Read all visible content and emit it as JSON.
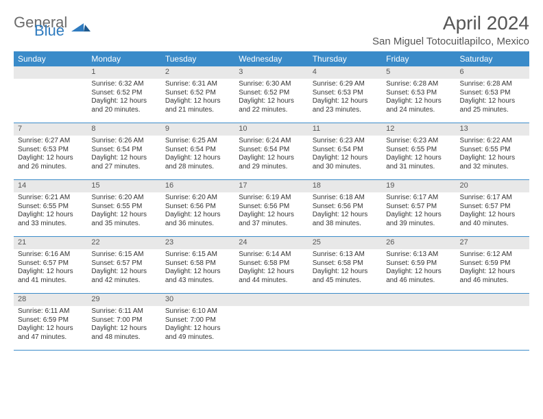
{
  "brand": {
    "part1": "General",
    "part2": "Blue"
  },
  "title": "April 2024",
  "location": "San Miguel Totocuitlapilco, Mexico",
  "colors": {
    "headerBar": "#3a8bc9",
    "dayNumBg": "#e8e8e8",
    "text": "#333333",
    "titleText": "#555555",
    "brandGrey": "#6b6b6b",
    "brandBlue": "#2f7bbf"
  },
  "dayNames": [
    "Sunday",
    "Monday",
    "Tuesday",
    "Wednesday",
    "Thursday",
    "Friday",
    "Saturday"
  ],
  "weeks": [
    [
      {
        "n": "",
        "sunrise": "",
        "sunset": "",
        "daylight": ""
      },
      {
        "n": "1",
        "sunrise": "Sunrise: 6:32 AM",
        "sunset": "Sunset: 6:52 PM",
        "daylight": "Daylight: 12 hours and 20 minutes."
      },
      {
        "n": "2",
        "sunrise": "Sunrise: 6:31 AM",
        "sunset": "Sunset: 6:52 PM",
        "daylight": "Daylight: 12 hours and 21 minutes."
      },
      {
        "n": "3",
        "sunrise": "Sunrise: 6:30 AM",
        "sunset": "Sunset: 6:52 PM",
        "daylight": "Daylight: 12 hours and 22 minutes."
      },
      {
        "n": "4",
        "sunrise": "Sunrise: 6:29 AM",
        "sunset": "Sunset: 6:53 PM",
        "daylight": "Daylight: 12 hours and 23 minutes."
      },
      {
        "n": "5",
        "sunrise": "Sunrise: 6:28 AM",
        "sunset": "Sunset: 6:53 PM",
        "daylight": "Daylight: 12 hours and 24 minutes."
      },
      {
        "n": "6",
        "sunrise": "Sunrise: 6:28 AM",
        "sunset": "Sunset: 6:53 PM",
        "daylight": "Daylight: 12 hours and 25 minutes."
      }
    ],
    [
      {
        "n": "7",
        "sunrise": "Sunrise: 6:27 AM",
        "sunset": "Sunset: 6:53 PM",
        "daylight": "Daylight: 12 hours and 26 minutes."
      },
      {
        "n": "8",
        "sunrise": "Sunrise: 6:26 AM",
        "sunset": "Sunset: 6:54 PM",
        "daylight": "Daylight: 12 hours and 27 minutes."
      },
      {
        "n": "9",
        "sunrise": "Sunrise: 6:25 AM",
        "sunset": "Sunset: 6:54 PM",
        "daylight": "Daylight: 12 hours and 28 minutes."
      },
      {
        "n": "10",
        "sunrise": "Sunrise: 6:24 AM",
        "sunset": "Sunset: 6:54 PM",
        "daylight": "Daylight: 12 hours and 29 minutes."
      },
      {
        "n": "11",
        "sunrise": "Sunrise: 6:23 AM",
        "sunset": "Sunset: 6:54 PM",
        "daylight": "Daylight: 12 hours and 30 minutes."
      },
      {
        "n": "12",
        "sunrise": "Sunrise: 6:23 AM",
        "sunset": "Sunset: 6:55 PM",
        "daylight": "Daylight: 12 hours and 31 minutes."
      },
      {
        "n": "13",
        "sunrise": "Sunrise: 6:22 AM",
        "sunset": "Sunset: 6:55 PM",
        "daylight": "Daylight: 12 hours and 32 minutes."
      }
    ],
    [
      {
        "n": "14",
        "sunrise": "Sunrise: 6:21 AM",
        "sunset": "Sunset: 6:55 PM",
        "daylight": "Daylight: 12 hours and 33 minutes."
      },
      {
        "n": "15",
        "sunrise": "Sunrise: 6:20 AM",
        "sunset": "Sunset: 6:55 PM",
        "daylight": "Daylight: 12 hours and 35 minutes."
      },
      {
        "n": "16",
        "sunrise": "Sunrise: 6:20 AM",
        "sunset": "Sunset: 6:56 PM",
        "daylight": "Daylight: 12 hours and 36 minutes."
      },
      {
        "n": "17",
        "sunrise": "Sunrise: 6:19 AM",
        "sunset": "Sunset: 6:56 PM",
        "daylight": "Daylight: 12 hours and 37 minutes."
      },
      {
        "n": "18",
        "sunrise": "Sunrise: 6:18 AM",
        "sunset": "Sunset: 6:56 PM",
        "daylight": "Daylight: 12 hours and 38 minutes."
      },
      {
        "n": "19",
        "sunrise": "Sunrise: 6:17 AM",
        "sunset": "Sunset: 6:57 PM",
        "daylight": "Daylight: 12 hours and 39 minutes."
      },
      {
        "n": "20",
        "sunrise": "Sunrise: 6:17 AM",
        "sunset": "Sunset: 6:57 PM",
        "daylight": "Daylight: 12 hours and 40 minutes."
      }
    ],
    [
      {
        "n": "21",
        "sunrise": "Sunrise: 6:16 AM",
        "sunset": "Sunset: 6:57 PM",
        "daylight": "Daylight: 12 hours and 41 minutes."
      },
      {
        "n": "22",
        "sunrise": "Sunrise: 6:15 AM",
        "sunset": "Sunset: 6:57 PM",
        "daylight": "Daylight: 12 hours and 42 minutes."
      },
      {
        "n": "23",
        "sunrise": "Sunrise: 6:15 AM",
        "sunset": "Sunset: 6:58 PM",
        "daylight": "Daylight: 12 hours and 43 minutes."
      },
      {
        "n": "24",
        "sunrise": "Sunrise: 6:14 AM",
        "sunset": "Sunset: 6:58 PM",
        "daylight": "Daylight: 12 hours and 44 minutes."
      },
      {
        "n": "25",
        "sunrise": "Sunrise: 6:13 AM",
        "sunset": "Sunset: 6:58 PM",
        "daylight": "Daylight: 12 hours and 45 minutes."
      },
      {
        "n": "26",
        "sunrise": "Sunrise: 6:13 AM",
        "sunset": "Sunset: 6:59 PM",
        "daylight": "Daylight: 12 hours and 46 minutes."
      },
      {
        "n": "27",
        "sunrise": "Sunrise: 6:12 AM",
        "sunset": "Sunset: 6:59 PM",
        "daylight": "Daylight: 12 hours and 46 minutes."
      }
    ],
    [
      {
        "n": "28",
        "sunrise": "Sunrise: 6:11 AM",
        "sunset": "Sunset: 6:59 PM",
        "daylight": "Daylight: 12 hours and 47 minutes."
      },
      {
        "n": "29",
        "sunrise": "Sunrise: 6:11 AM",
        "sunset": "Sunset: 7:00 PM",
        "daylight": "Daylight: 12 hours and 48 minutes."
      },
      {
        "n": "30",
        "sunrise": "Sunrise: 6:10 AM",
        "sunset": "Sunset: 7:00 PM",
        "daylight": "Daylight: 12 hours and 49 minutes."
      },
      {
        "n": "",
        "sunrise": "",
        "sunset": "",
        "daylight": ""
      },
      {
        "n": "",
        "sunrise": "",
        "sunset": "",
        "daylight": ""
      },
      {
        "n": "",
        "sunrise": "",
        "sunset": "",
        "daylight": ""
      },
      {
        "n": "",
        "sunrise": "",
        "sunset": "",
        "daylight": ""
      }
    ]
  ]
}
